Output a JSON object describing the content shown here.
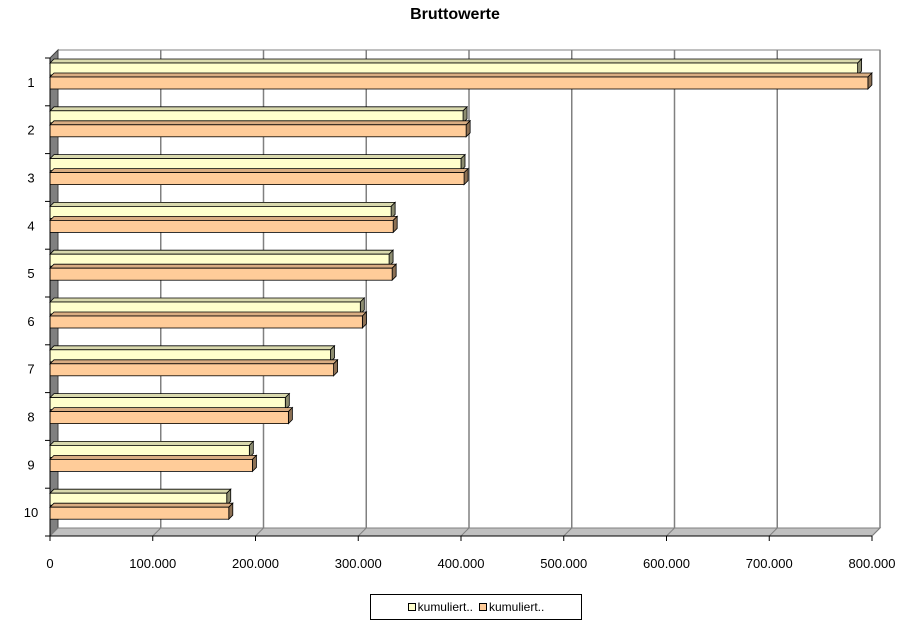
{
  "chart_data": {
    "type": "bar",
    "orientation": "horizontal",
    "three_d": true,
    "title": "Bruttowerte",
    "categories": [
      "1",
      "2",
      "3",
      "4",
      "5",
      "6",
      "7",
      "8",
      "9",
      "10"
    ],
    "series": [
      {
        "name": "kumuliert..",
        "color": "#FFFFCC",
        "values": [
          786000,
          402000,
          400000,
          332000,
          330000,
          302000,
          273000,
          229000,
          194000,
          172000
        ]
      },
      {
        "name": "kumuliert..",
        "color": "#FFCC99",
        "values": [
          796000,
          405000,
          403000,
          334000,
          333000,
          304000,
          276000,
          232000,
          197000,
          174000
        ]
      }
    ],
    "xlim": [
      0,
      800000
    ],
    "x_ticks": [
      0,
      100000,
      200000,
      300000,
      400000,
      500000,
      600000,
      700000,
      800000
    ],
    "x_tick_labels": [
      "0",
      "100.000",
      "200.000",
      "300.000",
      "400.000",
      "500.000",
      "600.000",
      "700.000",
      "800.000"
    ],
    "xlabel": "",
    "ylabel": "",
    "grid": true,
    "legend_position": "bottom"
  }
}
